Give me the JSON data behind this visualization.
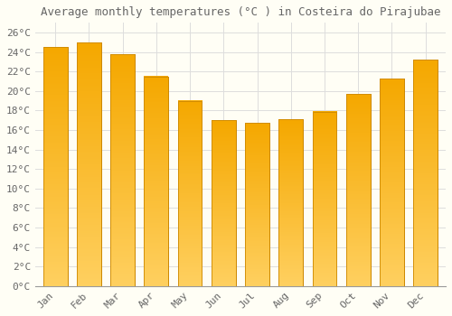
{
  "title": "Average monthly temperatures (°C ) in Costeira do Pirajubae",
  "months": [
    "Jan",
    "Feb",
    "Mar",
    "Apr",
    "May",
    "Jun",
    "Jul",
    "Aug",
    "Sep",
    "Oct",
    "Nov",
    "Dec"
  ],
  "values": [
    24.5,
    25.0,
    23.8,
    21.5,
    19.0,
    17.0,
    16.7,
    17.1,
    17.9,
    19.7,
    21.3,
    23.2
  ],
  "bar_color_top": "#FFD060",
  "bar_color_bottom": "#F5A800",
  "bar_edge_color": "#CC8800",
  "background_color": "#FFFEF5",
  "plot_bg_color": "#FFFEF5",
  "grid_color": "#DDDDDD",
  "text_color": "#666666",
  "title_fontsize": 9,
  "tick_fontsize": 8,
  "ylim": [
    0,
    27
  ],
  "yticks": [
    0,
    2,
    4,
    6,
    8,
    10,
    12,
    14,
    16,
    18,
    20,
    22,
    24,
    26
  ]
}
